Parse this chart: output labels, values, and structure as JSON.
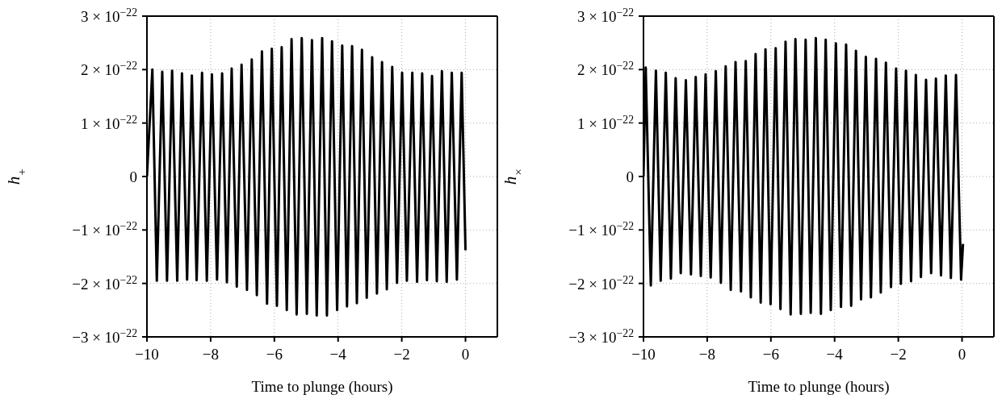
{
  "chart_data": [
    {
      "type": "line",
      "xlabel": "Time to plunge (hours)",
      "ylabel": "h$_{+}$",
      "grid": true,
      "xlim": [
        -10,
        1
      ],
      "xticks": [
        {
          "value": -10,
          "label": "−10"
        },
        {
          "value": -8,
          "label": "−8"
        },
        {
          "value": -6,
          "label": "−6"
        },
        {
          "value": -4,
          "label": "−4"
        },
        {
          "value": -2,
          "label": "−2"
        },
        0
      ],
      "ylim": [
        -3e-22,
        3e-22
      ],
      "yticks": [
        {
          "value": -3e-22,
          "label": "−3 × 10$^{−22}$"
        },
        {
          "value": -2e-22,
          "label": "−2 × 10$^{−22}$"
        },
        {
          "value": -1e-22,
          "label": "−1 × 10$^{−22}$"
        },
        0,
        {
          "value": 1e-22,
          "label": "1 × 10$^{−22}$"
        },
        {
          "value": 2e-22,
          "label": "2 × 10$^{−22}$"
        },
        {
          "value": 3e-22,
          "label": "3 × 10$^{−22}$"
        }
      ],
      "series": [
        {
          "color": "#000000",
          "x": [
            -10,
            -9.83,
            -9.69,
            -9.52,
            -9.37,
            -9.21,
            -9.05,
            -8.9,
            -8.74,
            -8.59,
            -8.44,
            -8.27,
            -8.12,
            -7.96,
            -7.8,
            -7.64,
            -7.49,
            -7.34,
            -7.18,
            -7.03,
            -6.86,
            -6.71,
            -6.55,
            -6.39,
            -6.23,
            -6.08,
            -5.92,
            -5.77,
            -5.61,
            -5.46,
            -5.3,
            -5.14,
            -4.98,
            -4.82,
            -4.67,
            -4.5,
            -4.35,
            -4.19,
            -4.03,
            -3.87,
            -3.72,
            -3.56,
            -3.41,
            -3.25,
            -3.1,
            -2.93,
            -2.78,
            -2.62,
            -2.47,
            -2.3,
            -2.15,
            -1.99,
            -1.84,
            -1.67,
            -1.52,
            -1.36,
            -1.21,
            -1.05,
            -0.9,
            -0.74,
            -0.59,
            -0.43,
            -0.27,
            -0.12,
            0
          ],
          "values": [
            0,
            2e-22,
            -1.95e-22,
            1.96e-22,
            -1.95e-22,
            1.98e-22,
            -1.95e-22,
            1.93e-22,
            -1.93e-22,
            1.89e-22,
            -1.94e-22,
            1.94e-22,
            -1.95e-22,
            1.91e-22,
            -1.93e-22,
            1.93e-22,
            -1.98e-22,
            2.02e-22,
            -2.06e-22,
            2.09e-22,
            -2.12e-22,
            2.19e-22,
            -2.22e-22,
            2.34e-22,
            -2.38e-22,
            2.39e-22,
            -2.42e-22,
            2.42e-22,
            -2.5e-22,
            2.57e-22,
            -2.58e-22,
            2.59e-22,
            -2.57e-22,
            2.55e-22,
            -2.6e-22,
            2.59e-22,
            -2.6e-22,
            2.53e-22,
            -2.5e-22,
            2.45e-22,
            -2.43e-22,
            2.44e-22,
            -2.37e-22,
            2.37e-22,
            -2.27e-22,
            2.23e-22,
            -2.19e-22,
            2.14e-22,
            -2.11e-22,
            2.05e-22,
            -1.99e-22,
            1.94e-22,
            -1.95e-22,
            1.94e-22,
            -1.97e-22,
            1.93e-22,
            -1.94e-22,
            1.88e-22,
            -1.96e-22,
            1.97e-22,
            -1.97e-22,
            1.94e-22,
            -1.93e-22,
            1.94e-22,
            -1.38e-22
          ]
        }
      ]
    },
    {
      "type": "line",
      "xlabel": "Time to plunge (hours)",
      "ylabel": "h$_{×}$",
      "grid": true,
      "xlim": [
        -10,
        1
      ],
      "xticks": [
        {
          "value": -10,
          "label": "−10"
        },
        {
          "value": -8,
          "label": "−8"
        },
        {
          "value": -6,
          "label": "−6"
        },
        {
          "value": -4,
          "label": "−4"
        },
        {
          "value": -2,
          "label": "−2"
        },
        0
      ],
      "ylim": [
        -3e-22,
        3e-22
      ],
      "yticks": [
        {
          "value": -3e-22,
          "label": "−3 × 10$^{−22}$"
        },
        {
          "value": -2e-22,
          "label": "−2 × 10$^{−22}$"
        },
        {
          "value": -1e-22,
          "label": "−1 × 10$^{−22}$"
        },
        0,
        {
          "value": 1e-22,
          "label": "1 × 10$^{−22}$"
        },
        {
          "value": 2e-22,
          "label": "2 × 10$^{−22}$"
        },
        {
          "value": 3e-22,
          "label": "3 × 10$^{−22}$"
        }
      ],
      "series": [
        {
          "color": "#000000",
          "x": [
            -10,
            -9.93,
            -9.77,
            -9.61,
            -9.46,
            -9.3,
            -9.14,
            -8.99,
            -8.83,
            -8.67,
            -8.51,
            -8.36,
            -8.2,
            -8.05,
            -7.89,
            -7.73,
            -7.57,
            -7.42,
            -7.26,
            -7.11,
            -6.94,
            -6.79,
            -6.63,
            -6.48,
            -6.32,
            -6.17,
            -6.01,
            -5.85,
            -5.7,
            -5.54,
            -5.38,
            -5.23,
            -5.06,
            -4.91,
            -4.75,
            -4.59,
            -4.43,
            -4.28,
            -4.12,
            -3.96,
            -3.8,
            -3.64,
            -3.48,
            -3.33,
            -3.17,
            -3.02,
            -2.86,
            -2.7,
            -2.55,
            -2.39,
            -2.23,
            -2.07,
            -1.92,
            -1.76,
            -1.6,
            -1.45,
            -1.29,
            -1.13,
            -0.97,
            -0.82,
            -0.66,
            -0.51,
            -0.35,
            -0.19,
            -0.03,
            0.03
          ],
          "values": [
            0,
            2.04e-22,
            -2.04e-22,
            1.98e-22,
            -1.95e-22,
            1.94e-22,
            -1.91e-22,
            1.84e-22,
            -1.81e-22,
            1.8e-22,
            -1.83e-22,
            1.86e-22,
            -1.86e-22,
            1.91e-22,
            -1.89e-22,
            1.97e-22,
            -1.99e-22,
            2.06e-22,
            -2.12e-22,
            2.14e-22,
            -2.15e-22,
            2.16e-22,
            -2.26e-22,
            2.29e-22,
            -2.36e-22,
            2.38e-22,
            -2.39e-22,
            2.4e-22,
            -2.48e-22,
            2.52e-22,
            -2.58e-22,
            2.57e-22,
            -2.57e-22,
            2.56e-22,
            -2.55e-22,
            2.59e-22,
            -2.57e-22,
            2.56e-22,
            -2.5e-22,
            2.49e-22,
            -2.44e-22,
            2.47e-22,
            -2.42e-22,
            2.35e-22,
            -2.3e-22,
            2.24e-22,
            -2.26e-22,
            2.2e-22,
            -2.17e-22,
            2.13e-22,
            -2.07e-22,
            2.02e-22,
            -2.01e-22,
            1.98e-22,
            -1.96e-22,
            1.9e-22,
            -1.88e-22,
            1.81e-22,
            -1.81e-22,
            1.83e-22,
            -1.85e-22,
            1.89e-22,
            -1.9e-22,
            1.9e-22,
            -1.93e-22,
            -1.26e-22
          ]
        }
      ]
    }
  ]
}
